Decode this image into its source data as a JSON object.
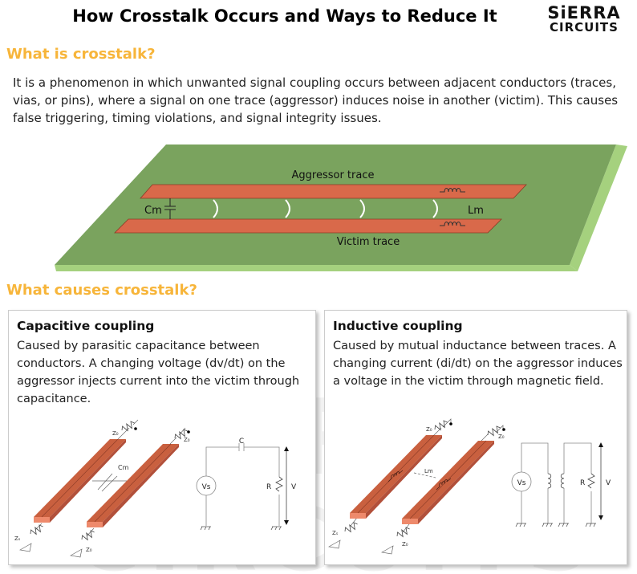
{
  "header": {
    "title": "How Crosstalk Occurs and Ways to Reduce It",
    "logo_line1": "SiERRA",
    "logo_line2": "CIRCUITS"
  },
  "section1": {
    "heading": "What is crosstalk?",
    "body": "It is a phenomenon in which unwanted signal coupling occurs between adjacent conductors (traces, vias, or pins), where a signal on one trace  (aggressor) induces noise in another (victim). This causes false triggering, timing violations, and signal integrity issues."
  },
  "pcb": {
    "aggressor_label": "Aggressor trace",
    "victim_label": "Victim trace",
    "cm_label": "Cm",
    "lm_label": "Lm",
    "board_color": "#7aa35e",
    "trace_color": "#d9694a"
  },
  "section2": {
    "heading": "What causes crosstalk?"
  },
  "capacitive": {
    "title": "Capacitive coupling",
    "body": "Caused by parasitic capacitance between conductors. A changing voltage (dv/dt) on the aggressor injects current into the victim through capacitance.",
    "labels": {
      "z0": "Z₀",
      "zs": "Zₛ",
      "cm": "Cm",
      "c": "C",
      "vs": "Vs",
      "r": "R",
      "v": "V"
    }
  },
  "inductive": {
    "title": "Inductive coupling",
    "body": "Caused by mutual inductance between traces. A changing current (di/dt) on the aggressor induces a voltage in the victim through magnetic field.",
    "labels": {
      "z0": "Z₀",
      "zs": "Zₛ",
      "lm": "Lm",
      "vs": "Vs",
      "r": "R",
      "v": "V"
    }
  },
  "watermark": {
    "line1": "SIERRA",
    "line2": "CIRCUITS"
  }
}
